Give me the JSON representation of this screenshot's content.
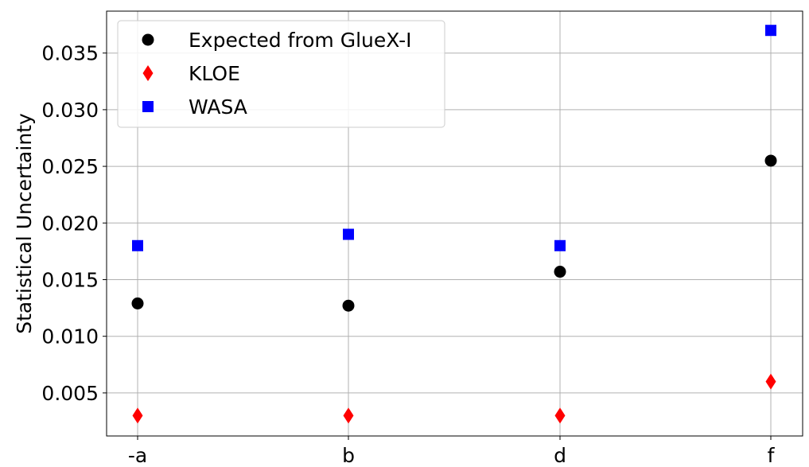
{
  "chart_data": {
    "type": "scatter",
    "title": "",
    "xlabel": "",
    "ylabel": "Statistical Uncertainty",
    "categories": [
      "-a",
      "b",
      "d",
      "f"
    ],
    "ylim": [
      0.0012,
      0.0387
    ],
    "yticks": [
      0.005,
      0.01,
      0.015,
      0.02,
      0.025,
      0.03,
      0.035
    ],
    "ytick_labels": [
      "0.005",
      "0.010",
      "0.015",
      "0.020",
      "0.025",
      "0.030",
      "0.035"
    ],
    "grid": true,
    "legend_position": "upper-left",
    "series": [
      {
        "name": "Expected from GlueX-I",
        "marker": "circle",
        "color": "#000000",
        "values": [
          0.0129,
          0.0127,
          0.0157,
          0.0255
        ]
      },
      {
        "name": "KLOE",
        "marker": "diamond",
        "color": "#ff0000",
        "values": [
          0.003,
          0.003,
          0.003,
          0.006
        ]
      },
      {
        "name": "WASA",
        "marker": "square",
        "color": "#0000ff",
        "values": [
          0.018,
          0.019,
          0.018,
          0.037
        ]
      }
    ]
  }
}
